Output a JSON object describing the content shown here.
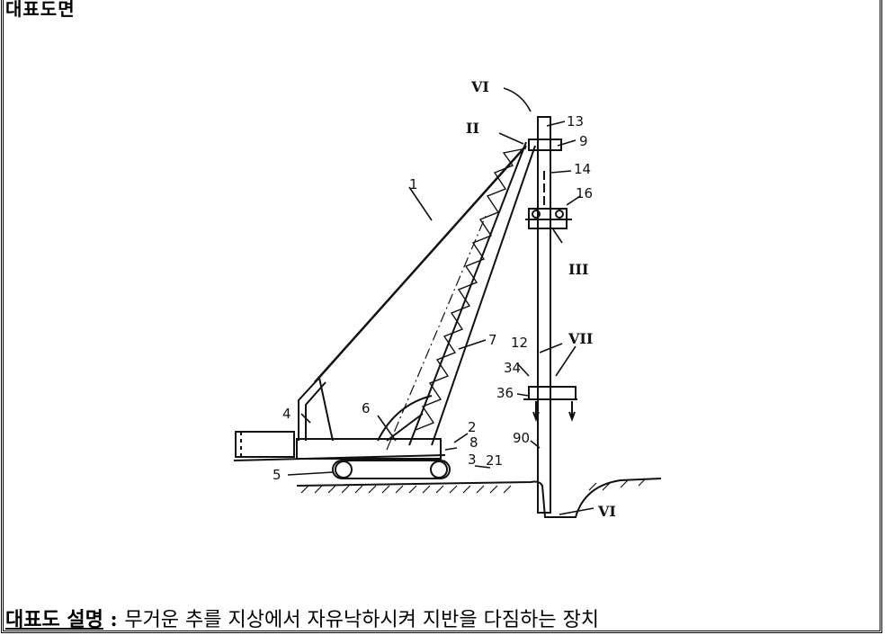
{
  "title": "대표도면",
  "caption": {
    "label": "대표도 설명",
    "colon": " : ",
    "text": "무거운 추를 지상에서 자유낙하시켜 지반을 다짐하는 장치"
  },
  "figure_labels": {
    "n1": "1",
    "n2": "2",
    "n3": "3",
    "n4": "4",
    "n5": "5",
    "n6": "6",
    "n7": "7",
    "n8": "8",
    "n9": "9",
    "n12": "12",
    "n13": "13",
    "n14": "14",
    "n16": "16",
    "n21": "21",
    "n34": "34",
    "n36": "36",
    "n90": "90",
    "r2": "II",
    "r3": "III",
    "r6a": "VI",
    "r6b": "VI",
    "r7": "VII"
  }
}
